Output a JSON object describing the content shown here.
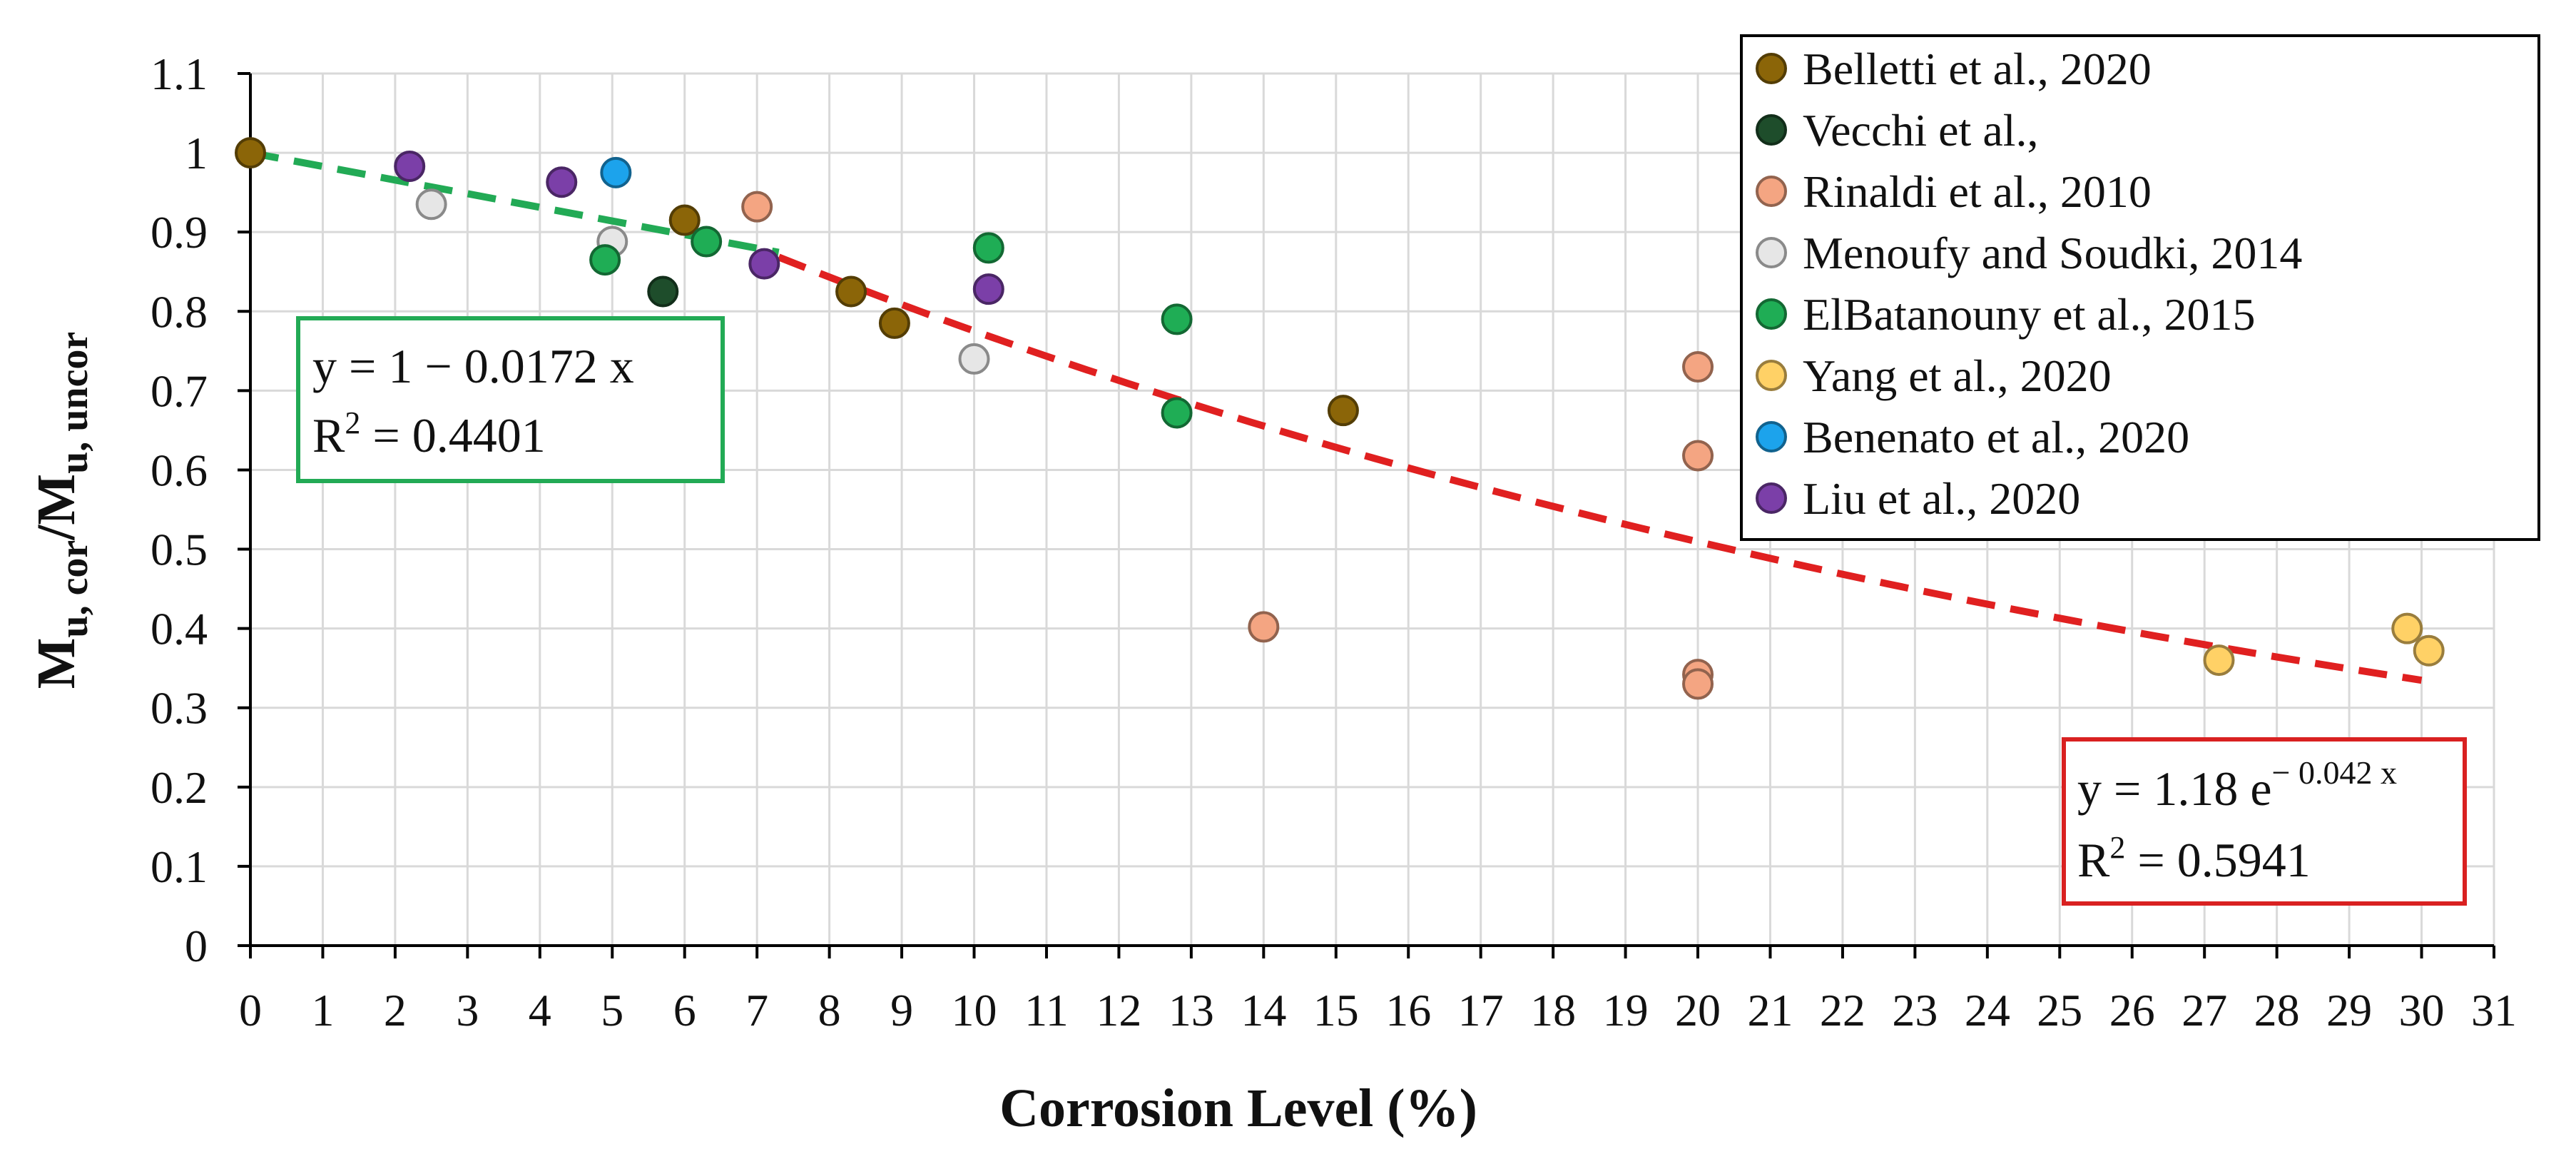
{
  "chart_data": {
    "type": "scatter",
    "title": "",
    "xlabel": "Corrosion Level (%)",
    "ylabel_main": "M",
    "ylabel_sub1": "u, cor",
    "ylabel_slash": "/M",
    "ylabel_sub2": "u, uncor",
    "xlim": [
      0,
      31
    ],
    "ylim": [
      0,
      1.1
    ],
    "xticks": [
      "0",
      "1",
      "2",
      "3",
      "4",
      "5",
      "6",
      "7",
      "8",
      "9",
      "10",
      "11",
      "12",
      "13",
      "14",
      "15",
      "16",
      "17",
      "18",
      "19",
      "20",
      "21",
      "22",
      "23",
      "24",
      "25",
      "26",
      "27",
      "28",
      "29",
      "30",
      "31"
    ],
    "yticks": [
      "0",
      "0.1",
      "0.2",
      "0.3",
      "0.4",
      "0.5",
      "0.6",
      "0.7",
      "0.8",
      "0.9",
      "1",
      "1.1"
    ],
    "legend_position": "top-right",
    "series": [
      {
        "name": "Belletti et al., 2020",
        "color": "#8B6508",
        "points": [
          [
            0,
            1.0
          ],
          [
            6.0,
            0.915
          ],
          [
            8.3,
            0.825
          ],
          [
            8.9,
            0.785
          ],
          [
            15.1,
            0.675
          ]
        ]
      },
      {
        "name": "Vecchi et al.,",
        "color": "#1E4D2B",
        "points": [
          [
            5.7,
            0.825
          ]
        ]
      },
      {
        "name": "Rinaldi et al., 2010",
        "color": "#F4A582",
        "points": [
          [
            7.0,
            0.932
          ],
          [
            14.0,
            0.402
          ],
          [
            20.0,
            0.73
          ],
          [
            20.0,
            0.618
          ],
          [
            20.0,
            0.342
          ],
          [
            20.0,
            0.33
          ]
        ]
      },
      {
        "name": "Menoufy and Soudki, 2014",
        "color": "#E6E6E6",
        "points": [
          [
            2.5,
            0.935
          ],
          [
            5.0,
            0.888
          ],
          [
            10.0,
            0.74
          ]
        ]
      },
      {
        "name": "ElBatanouny et al., 2015",
        "color": "#1FAD55",
        "points": [
          [
            4.9,
            0.865
          ],
          [
            6.3,
            0.888
          ],
          [
            10.2,
            0.88
          ],
          [
            12.8,
            0.79
          ],
          [
            12.8,
            0.672
          ]
        ]
      },
      {
        "name": "Yang et al., 2020",
        "color": "#FFD166",
        "points": [
          [
            27.2,
            0.36
          ],
          [
            29.8,
            0.4
          ],
          [
            30.1,
            0.372
          ]
        ]
      },
      {
        "name": "Benenato et al., 2020",
        "color": "#1CA3EC",
        "points": [
          [
            5.05,
            0.975
          ]
        ]
      },
      {
        "name": "Liu et al., 2020",
        "color": "#7B3FA8",
        "points": [
          [
            2.2,
            0.983
          ],
          [
            4.3,
            0.963
          ],
          [
            7.1,
            0.86
          ],
          [
            10.2,
            0.828
          ]
        ]
      }
    ],
    "fits": [
      {
        "name": "linear",
        "color": "#22AA55",
        "a": 1,
        "b": -0.0172,
        "x_range": [
          0,
          7.3
        ],
        "equation": "y = 1 − 0.0172 x",
        "r2_prefix": "R",
        "r2_sup": "2",
        "r2_value": " = 0.4401"
      },
      {
        "name": "exponential",
        "color": "#E02020",
        "a": 1.18,
        "k": -0.042,
        "x_range": [
          7.3,
          30
        ],
        "equation_prefix": "y = 1.18 e",
        "equation_sup": "− 0.042 x",
        "r2_prefix": "R",
        "r2_sup": "2",
        "r2_value": " = 0.5941"
      }
    ]
  }
}
